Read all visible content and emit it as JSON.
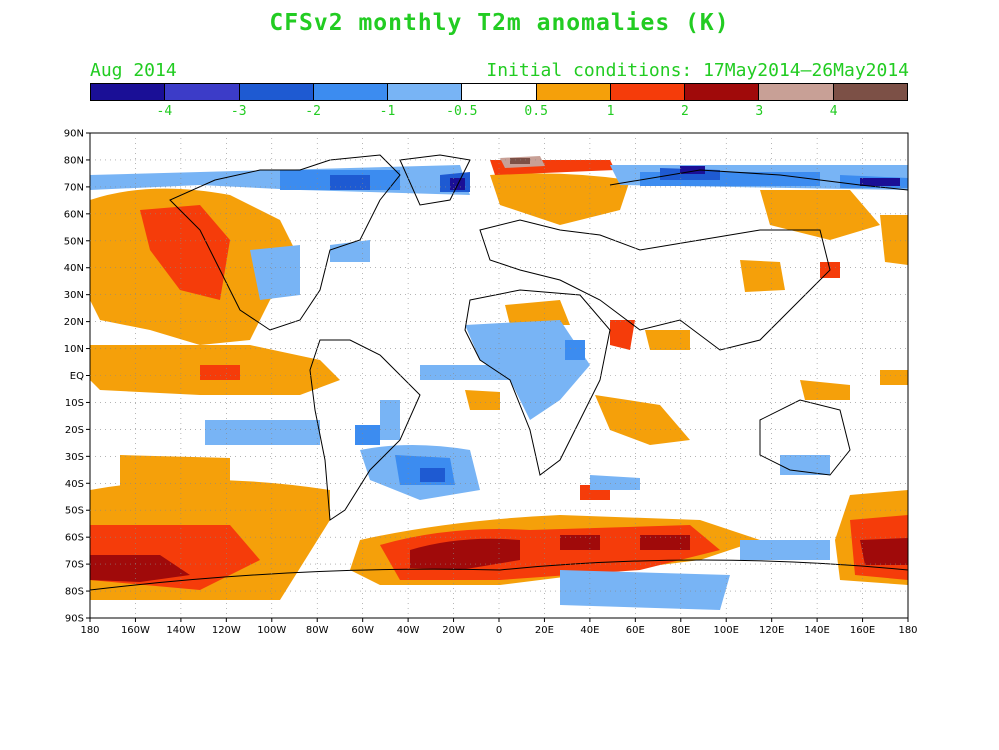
{
  "title": "CFSv2 monthly T2m anomalies (K)",
  "subtitle_left": "Aug 2014",
  "subtitle_right": "Initial conditions: 17May2014–26May2014",
  "colors": {
    "text": "#22cc22",
    "legend": [
      "#1a0f96",
      "#3c3cc8",
      "#1e5ad2",
      "#3c8cf0",
      "#78b4f5",
      "#ffffff",
      "#f5a00a",
      "#f53c0a",
      "#a00a0a",
      "#c8a096",
      "#7c5046"
    ]
  },
  "colorbar_labels": [
    "-4",
    "-3",
    "-2",
    "-1",
    "-0.5",
    "0.5",
    "1",
    "2",
    "3",
    "4"
  ],
  "map": {
    "lat_labels": [
      "90N",
      "80N",
      "70N",
      "60N",
      "50N",
      "40N",
      "30N",
      "20N",
      "10N",
      "EQ",
      "10S",
      "20S",
      "30S",
      "40S",
      "50S",
      "60S",
      "70S",
      "80S",
      "90S"
    ],
    "lon_labels": [
      "180",
      "160W",
      "140W",
      "120W",
      "100W",
      "80W",
      "60W",
      "40W",
      "20W",
      "0",
      "20E",
      "40E",
      "60E",
      "80E",
      "100E",
      "120E",
      "140E",
      "160E",
      "180"
    ]
  }
}
